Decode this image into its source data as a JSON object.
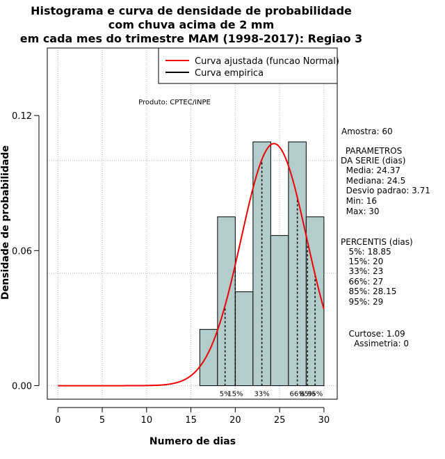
{
  "chart_data": {
    "type": "bar",
    "title_lines": [
      "Histograma e curva de densidade de probabilidade",
      "com chuva acima de 2 mm",
      "em cada mes do trimestre MAM (1998-2017): Regiao 3"
    ],
    "xlabel": "Numero de dias",
    "ylabel": "Densidade de probabilidade",
    "xlim": [
      -1.2,
      31.5
    ],
    "ylim": [
      -0.006,
      0.15
    ],
    "xticks": [
      0,
      5,
      10,
      15,
      20,
      25,
      30
    ],
    "xtick_labels": [
      "0",
      "5",
      "10",
      "15",
      "20",
      "25",
      "30"
    ],
    "yticks": [
      0.0,
      0.06,
      0.12
    ],
    "ytick_labels": [
      "0.00",
      "0.06",
      "0.12"
    ],
    "grid": true,
    "grid_x": [
      0,
      5,
      10,
      15,
      20,
      25,
      30
    ],
    "grid_y": [
      0.0,
      0.05,
      0.1,
      0.15
    ],
    "histogram": {
      "bin_edges": [
        16,
        18,
        20,
        22,
        24,
        26,
        28,
        30
      ],
      "density": [
        0.025,
        0.075,
        0.0417,
        0.1083,
        0.0667,
        0.1083,
        0.075
      ],
      "fill": "#b3cccc"
    },
    "normal_curve": {
      "mean": 24.37,
      "sd": 3.71,
      "x_range": [
        0,
        30
      ],
      "color": "#ee0000"
    },
    "percentile_lines": [
      {
        "label": "5%",
        "x": 18.85
      },
      {
        "label": "15%",
        "x": 20
      },
      {
        "label": "33%",
        "x": 23
      },
      {
        "label": "66%",
        "x": 27
      },
      {
        "label": "85%",
        "x": 28.15
      },
      {
        "label": "95%",
        "x": 29
      }
    ],
    "legend": {
      "position": "top-right",
      "entries": [
        {
          "label": "Curva ajustada (funcao Normal)",
          "color": "#ee0000"
        },
        {
          "label": "Curva empirica",
          "color": "#000000"
        }
      ]
    },
    "annotation": "Produto: CPTEC/INPE"
  },
  "stats": {
    "sample": "Amostra: 60",
    "params_lines": [
      " PARAMETROS",
      "DA SERIE (dias)",
      "  Media: 24.37",
      "  Mediana: 24.5",
      "  Desvio padrao: 3.71",
      "  Min: 16",
      "  Max: 30"
    ],
    "percentile_lines": [
      "PERCENTIS (dias)",
      "   5%: 18.85",
      "   15%: 20",
      "   33%: 23",
      "   66%: 27",
      "   85%: 28.15",
      "   95%: 29"
    ],
    "shape_lines": [
      "   Curtose: 1.09",
      "     Assimetria: 0"
    ]
  }
}
